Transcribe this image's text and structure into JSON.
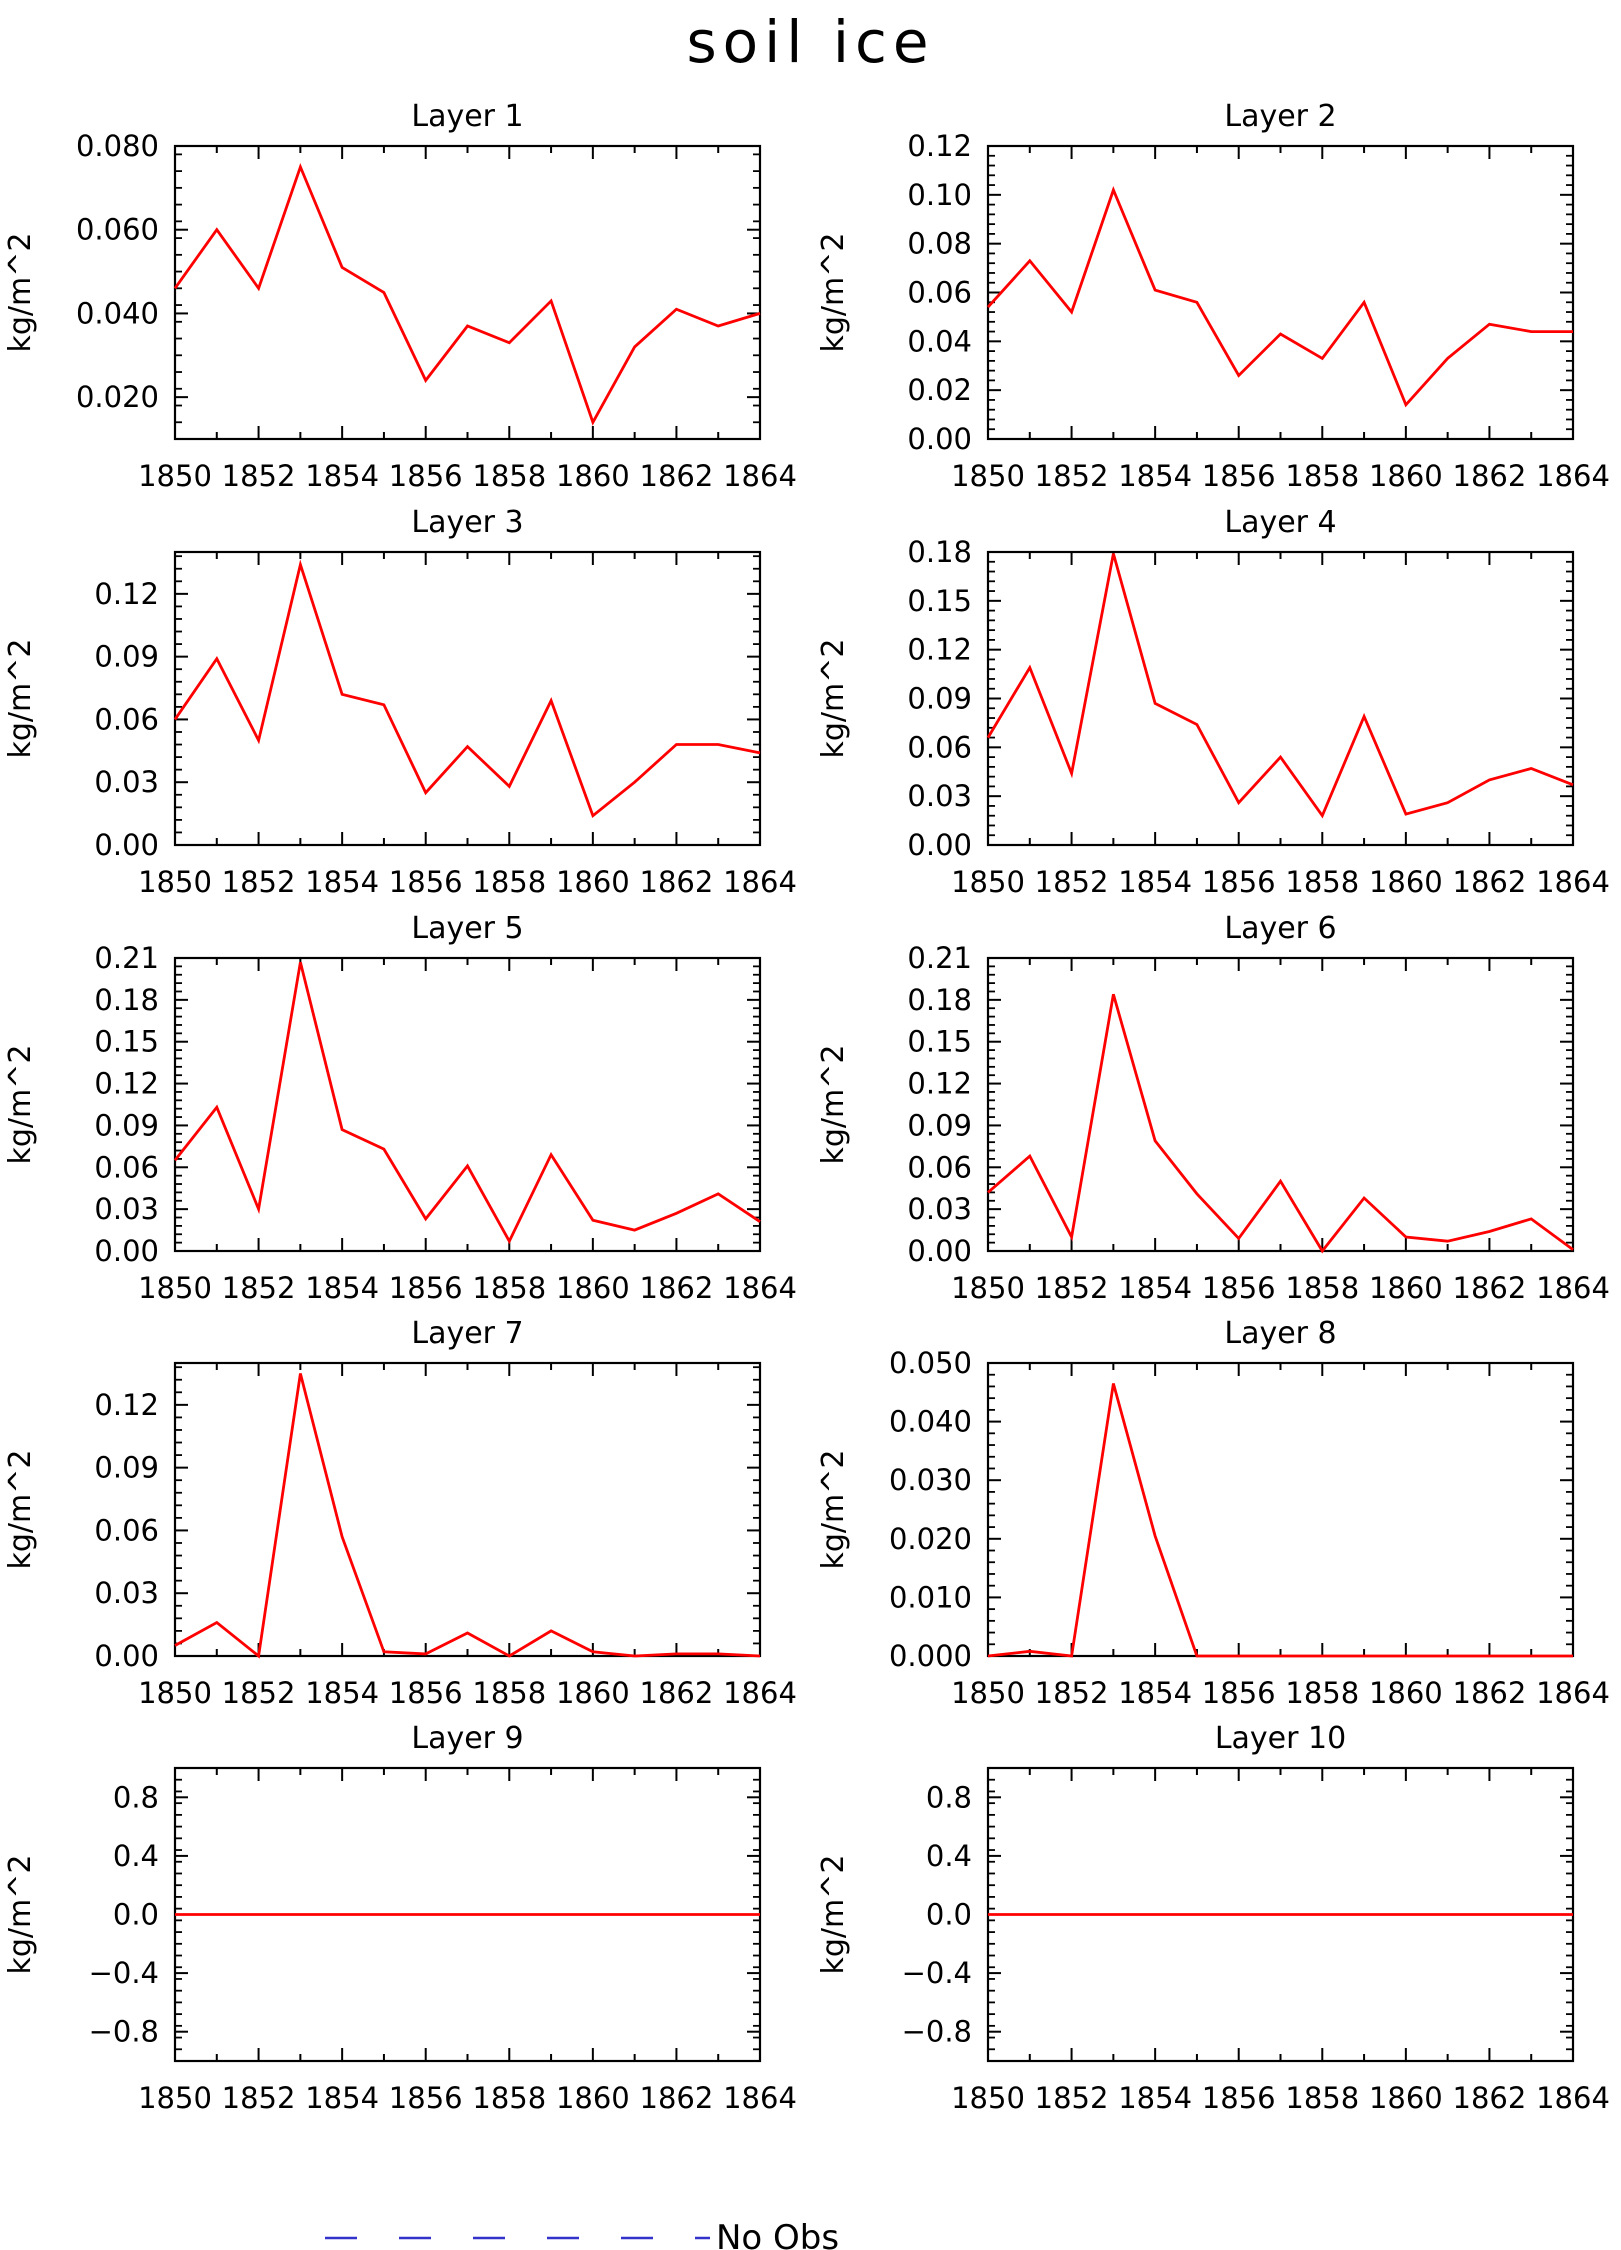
{
  "figure": {
    "title": "soil ice",
    "legend": {
      "label": "No Obs",
      "color": "#3333cc",
      "style": "dashed"
    },
    "series_color": "#ff0000"
  },
  "chart_data": [
    {
      "type": "line",
      "title": "Layer 1",
      "ylabel": "kg/m^2",
      "x": [
        1850,
        1851,
        1852,
        1853,
        1854,
        1855,
        1856,
        1857,
        1858,
        1859,
        1860,
        1861,
        1862,
        1863,
        1864
      ],
      "xticks": [
        "1850",
        "1852",
        "1854",
        "1856",
        "1858",
        "1860",
        "1862",
        "1864"
      ],
      "ylim": [
        0.01,
        0.08
      ],
      "yticks": [
        "0.020",
        "0.040",
        "0.060",
        "0.080"
      ],
      "series": [
        {
          "values": [
            0.046,
            0.06,
            0.046,
            0.075,
            0.051,
            0.045,
            0.024,
            0.037,
            0.033,
            0.043,
            0.014,
            0.032,
            0.041,
            0.037,
            0.04
          ]
        }
      ]
    },
    {
      "type": "line",
      "title": "Layer 2",
      "ylabel": "kg/m^2",
      "x": [
        1850,
        1851,
        1852,
        1853,
        1854,
        1855,
        1856,
        1857,
        1858,
        1859,
        1860,
        1861,
        1862,
        1863,
        1864
      ],
      "xticks": [
        "1850",
        "1852",
        "1854",
        "1856",
        "1858",
        "1860",
        "1862",
        "1864"
      ],
      "ylim": [
        0.0,
        0.12
      ],
      "yticks": [
        "0.00",
        "0.02",
        "0.04",
        "0.06",
        "0.08",
        "0.10",
        "0.12"
      ],
      "series": [
        {
          "values": [
            0.054,
            0.073,
            0.052,
            0.102,
            0.061,
            0.056,
            0.026,
            0.043,
            0.033,
            0.056,
            0.014,
            0.033,
            0.047,
            0.044,
            0.044
          ]
        }
      ]
    },
    {
      "type": "line",
      "title": "Layer 3",
      "ylabel": "kg/m^2",
      "x": [
        1850,
        1851,
        1852,
        1853,
        1854,
        1855,
        1856,
        1857,
        1858,
        1859,
        1860,
        1861,
        1862,
        1863,
        1864
      ],
      "xticks": [
        "1850",
        "1852",
        "1854",
        "1856",
        "1858",
        "1860",
        "1862",
        "1864"
      ],
      "ylim": [
        0.0,
        0.14
      ],
      "yticks": [
        "0.00",
        "0.03",
        "0.06",
        "0.09",
        "0.12"
      ],
      "series": [
        {
          "values": [
            0.06,
            0.089,
            0.05,
            0.134,
            0.072,
            0.067,
            0.025,
            0.047,
            0.028,
            0.069,
            0.014,
            0.03,
            0.048,
            0.048,
            0.044
          ]
        }
      ]
    },
    {
      "type": "line",
      "title": "Layer 4",
      "ylabel": "kg/m^2",
      "x": [
        1850,
        1851,
        1852,
        1853,
        1854,
        1855,
        1856,
        1857,
        1858,
        1859,
        1860,
        1861,
        1862,
        1863,
        1864
      ],
      "xticks": [
        "1850",
        "1852",
        "1854",
        "1856",
        "1858",
        "1860",
        "1862",
        "1864"
      ],
      "ylim": [
        0.0,
        0.18
      ],
      "yticks": [
        "0.00",
        "0.03",
        "0.06",
        "0.09",
        "0.12",
        "0.15",
        "0.18"
      ],
      "series": [
        {
          "values": [
            0.066,
            0.109,
            0.044,
            0.179,
            0.087,
            0.074,
            0.026,
            0.054,
            0.018,
            0.079,
            0.019,
            0.026,
            0.04,
            0.047,
            0.037
          ]
        }
      ]
    },
    {
      "type": "line",
      "title": "Layer 5",
      "ylabel": "kg/m^2",
      "x": [
        1850,
        1851,
        1852,
        1853,
        1854,
        1855,
        1856,
        1857,
        1858,
        1859,
        1860,
        1861,
        1862,
        1863,
        1864
      ],
      "xticks": [
        "1850",
        "1852",
        "1854",
        "1856",
        "1858",
        "1860",
        "1862",
        "1864"
      ],
      "ylim": [
        0.0,
        0.21
      ],
      "yticks": [
        "0.00",
        "0.03",
        "0.06",
        "0.09",
        "0.12",
        "0.15",
        "0.18",
        "0.21"
      ],
      "series": [
        {
          "values": [
            0.065,
            0.103,
            0.03,
            0.207,
            0.087,
            0.073,
            0.023,
            0.061,
            0.007,
            0.069,
            0.022,
            0.015,
            0.027,
            0.041,
            0.021
          ]
        }
      ]
    },
    {
      "type": "line",
      "title": "Layer 6",
      "ylabel": "kg/m^2",
      "x": [
        1850,
        1851,
        1852,
        1853,
        1854,
        1855,
        1856,
        1857,
        1858,
        1859,
        1860,
        1861,
        1862,
        1863,
        1864
      ],
      "xticks": [
        "1850",
        "1852",
        "1854",
        "1856",
        "1858",
        "1860",
        "1862",
        "1864"
      ],
      "ylim": [
        0.0,
        0.21
      ],
      "yticks": [
        "0.00",
        "0.03",
        "0.06",
        "0.09",
        "0.12",
        "0.15",
        "0.18",
        "0.21"
      ],
      "series": [
        {
          "values": [
            0.042,
            0.068,
            0.01,
            0.184,
            0.079,
            0.041,
            0.009,
            0.05,
            0.0,
            0.038,
            0.01,
            0.007,
            0.014,
            0.023,
            0.001
          ]
        }
      ]
    },
    {
      "type": "line",
      "title": "Layer 7",
      "ylabel": "kg/m^2",
      "x": [
        1850,
        1851,
        1852,
        1853,
        1854,
        1855,
        1856,
        1857,
        1858,
        1859,
        1860,
        1861,
        1862,
        1863,
        1864
      ],
      "xticks": [
        "1850",
        "1852",
        "1854",
        "1856",
        "1858",
        "1860",
        "1862",
        "1864"
      ],
      "ylim": [
        0.0,
        0.14
      ],
      "yticks": [
        "0.00",
        "0.03",
        "0.06",
        "0.09",
        "0.12"
      ],
      "series": [
        {
          "values": [
            0.005,
            0.016,
            0.0,
            0.135,
            0.057,
            0.002,
            0.001,
            0.011,
            0.0,
            0.012,
            0.002,
            0.0,
            0.001,
            0.001,
            0.0
          ]
        }
      ]
    },
    {
      "type": "line",
      "title": "Layer 8",
      "ylabel": "kg/m^2",
      "x": [
        1850,
        1851,
        1852,
        1853,
        1854,
        1855,
        1856,
        1857,
        1858,
        1859,
        1860,
        1861,
        1862,
        1863,
        1864
      ],
      "xticks": [
        "1850",
        "1852",
        "1854",
        "1856",
        "1858",
        "1860",
        "1862",
        "1864"
      ],
      "ylim": [
        0.0,
        0.05
      ],
      "yticks": [
        "0.000",
        "0.010",
        "0.020",
        "0.030",
        "0.040",
        "0.050"
      ],
      "series": [
        {
          "values": [
            0.0,
            0.0008,
            0.0,
            0.0465,
            0.0205,
            0.0,
            0.0,
            0.0,
            0.0,
            0.0,
            0.0,
            0.0,
            0.0,
            0.0,
            0.0
          ]
        }
      ]
    },
    {
      "type": "line",
      "title": "Layer 9",
      "ylabel": "kg/m^2",
      "x": [
        1850,
        1851,
        1852,
        1853,
        1854,
        1855,
        1856,
        1857,
        1858,
        1859,
        1860,
        1861,
        1862,
        1863,
        1864
      ],
      "xticks": [
        "1850",
        "1852",
        "1854",
        "1856",
        "1858",
        "1860",
        "1862",
        "1864"
      ],
      "ylim": [
        -1.0,
        1.0
      ],
      "yticks": [
        "−0.8",
        "−0.4",
        "0.0",
        "0.4",
        "0.8"
      ],
      "series": [
        {
          "values": [
            0,
            0,
            0,
            0,
            0,
            0,
            0,
            0,
            0,
            0,
            0,
            0,
            0,
            0,
            0
          ]
        }
      ]
    },
    {
      "type": "line",
      "title": "Layer 10",
      "ylabel": "kg/m^2",
      "x": [
        1850,
        1851,
        1852,
        1853,
        1854,
        1855,
        1856,
        1857,
        1858,
        1859,
        1860,
        1861,
        1862,
        1863,
        1864
      ],
      "xticks": [
        "1850",
        "1852",
        "1854",
        "1856",
        "1858",
        "1860",
        "1862",
        "1864"
      ],
      "ylim": [
        -1.0,
        1.0
      ],
      "yticks": [
        "−0.8",
        "−0.4",
        "0.0",
        "0.4",
        "0.8"
      ],
      "series": [
        {
          "values": [
            0,
            0,
            0,
            0,
            0,
            0,
            0,
            0,
            0,
            0,
            0,
            0,
            0,
            0,
            0
          ]
        }
      ]
    }
  ]
}
